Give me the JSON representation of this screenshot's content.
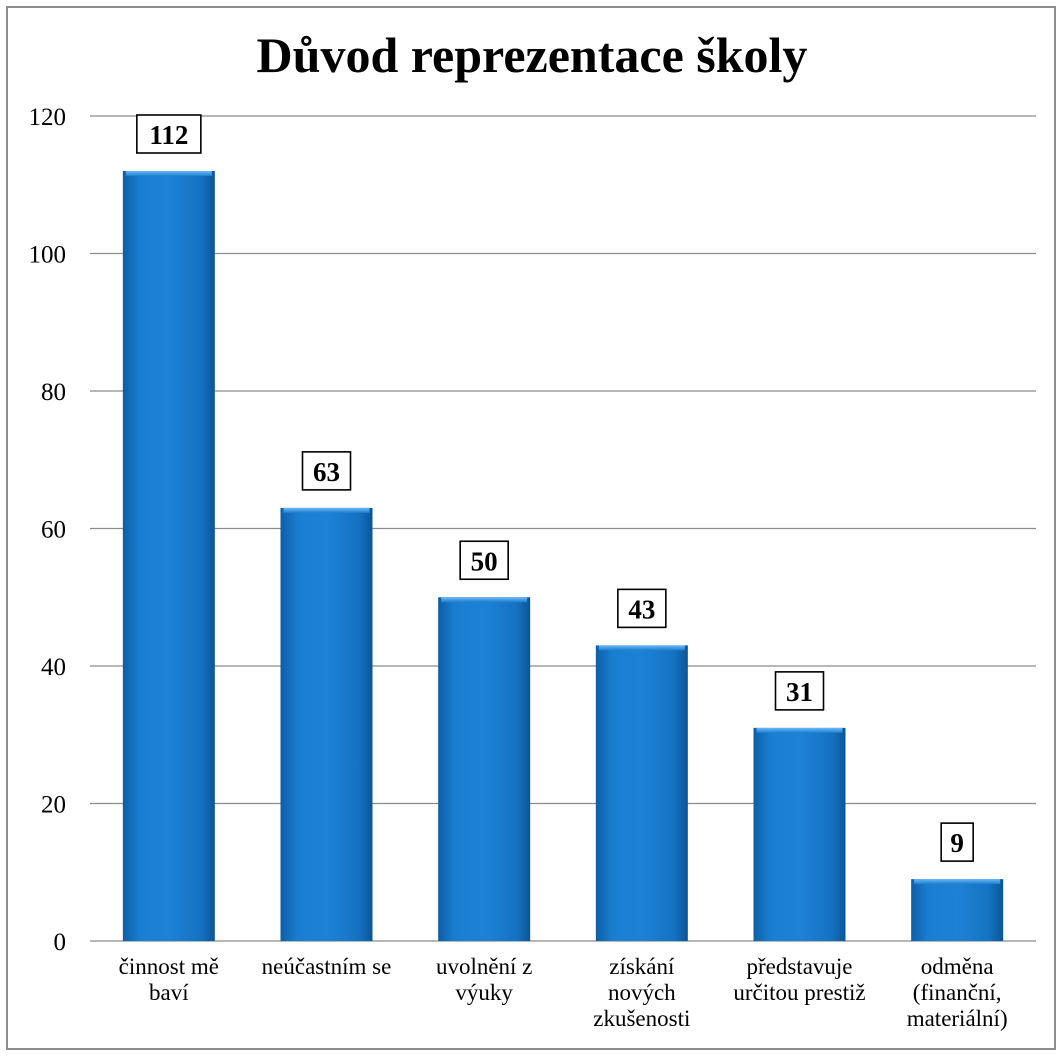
{
  "chart_data": {
    "type": "bar",
    "title": "Důvod reprezentace školy",
    "categories": [
      [
        "činnost mě",
        "baví"
      ],
      [
        "neúčastním se"
      ],
      [
        "uvolnění z",
        "výuky"
      ],
      [
        "získání",
        "nových",
        "zkušenosti"
      ],
      [
        "představuje",
        "určitou prestiž"
      ],
      [
        "odměna",
        "(finanční,",
        "materiální)"
      ]
    ],
    "values": [
      112,
      63,
      50,
      43,
      31,
      9
    ],
    "data_labels": [
      "112",
      "63",
      "50",
      "43",
      "31",
      "9"
    ],
    "ylim": [
      0,
      120
    ],
    "yticks": [
      0,
      20,
      40,
      60,
      80,
      100,
      120
    ],
    "grid": true,
    "legend": "none",
    "colors": {
      "bar": "#1577c9",
      "bar_light": "#3a97e6",
      "bar_dark": "#0d5ea6",
      "grid": "#8c8c8c"
    }
  }
}
